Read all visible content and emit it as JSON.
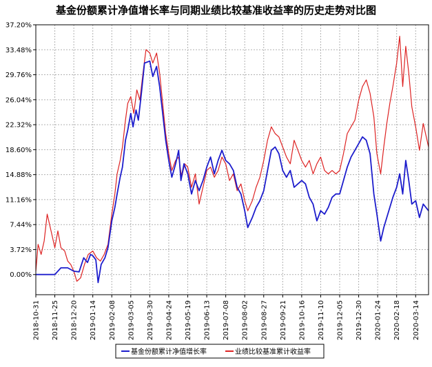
{
  "chart_data": {
    "type": "line",
    "title": "基金份额累计净值增长率与同期业绩比较基准收益率的历史走势对比图",
    "xlabel": "",
    "ylabel": "",
    "y_ticks": [
      "37.20%",
      "33.48%",
      "29.76%",
      "26.04%",
      "22.32%",
      "18.60%",
      "14.88%",
      "11.16%",
      "7.44%",
      "3.72%",
      "0.00%"
    ],
    "y_tick_values": [
      37.2,
      33.48,
      29.76,
      26.04,
      22.32,
      18.6,
      14.88,
      11.16,
      7.44,
      3.72,
      0.0
    ],
    "ylim": [
      -3.0,
      37.2
    ],
    "x_ticks": [
      "2018-10-31",
      "2018-11-25",
      "2018-12-20",
      "2019-01-14",
      "2019-02-08",
      "2019-03-05",
      "2019-03-30",
      "2019-04-24",
      "2019-05-19",
      "2019-06-13",
      "2019-07-08",
      "2019-08-02",
      "2019-08-27",
      "2019-09-21",
      "2019-10-16",
      "2019-11-10",
      "2019-12-05",
      "2019-12-30",
      "2020-01-24",
      "2020-02-18",
      "2020-03-14"
    ],
    "xlim": [
      "2018-10-31",
      "2020-03-31"
    ],
    "grid": true,
    "legend_position": "bottom",
    "series": [
      {
        "name": "基金份额累计净值增长率",
        "color": "#1c1ccc",
        "points": [
          [
            "2018-10-31",
            0.0
          ],
          [
            "2018-11-15",
            0.0
          ],
          [
            "2018-11-25",
            0.0
          ],
          [
            "2018-12-03",
            1.0
          ],
          [
            "2018-12-12",
            1.0
          ],
          [
            "2018-12-20",
            0.5
          ],
          [
            "2018-12-27",
            0.4
          ],
          [
            "2019-01-02",
            2.5
          ],
          [
            "2019-01-07",
            1.8
          ],
          [
            "2019-01-11",
            3.0
          ],
          [
            "2019-01-14",
            2.8
          ],
          [
            "2019-01-18",
            2.2
          ],
          [
            "2019-01-21",
            -1.2
          ],
          [
            "2019-01-25",
            1.5
          ],
          [
            "2019-01-30",
            2.5
          ],
          [
            "2019-02-03",
            4.0
          ],
          [
            "2019-02-08",
            8.0
          ],
          [
            "2019-02-12",
            10.0
          ],
          [
            "2019-02-15",
            12.0
          ],
          [
            "2019-02-19",
            14.5
          ],
          [
            "2019-02-22",
            16.0
          ],
          [
            "2019-02-26",
            20.0
          ],
          [
            "2019-03-01",
            21.5
          ],
          [
            "2019-03-05",
            24.0
          ],
          [
            "2019-03-08",
            22.0
          ],
          [
            "2019-03-12",
            24.5
          ],
          [
            "2019-03-15",
            23.0
          ],
          [
            "2019-03-19",
            27.0
          ],
          [
            "2019-03-23",
            31.5
          ],
          [
            "2019-03-30",
            31.8
          ],
          [
            "2019-04-03",
            29.5
          ],
          [
            "2019-04-08",
            31.0
          ],
          [
            "2019-04-12",
            28.0
          ],
          [
            "2019-04-16",
            24.0
          ],
          [
            "2019-04-20",
            20.0
          ],
          [
            "2019-04-24",
            17.0
          ],
          [
            "2019-04-28",
            14.5
          ],
          [
            "2019-05-03",
            16.5
          ],
          [
            "2019-05-07",
            18.5
          ],
          [
            "2019-05-10",
            14.0
          ],
          [
            "2019-05-14",
            16.5
          ],
          [
            "2019-05-19",
            15.0
          ],
          [
            "2019-05-24",
            12.0
          ],
          [
            "2019-05-29",
            14.0
          ],
          [
            "2019-06-03",
            12.5
          ],
          [
            "2019-06-08",
            14.0
          ],
          [
            "2019-06-13",
            16.0
          ],
          [
            "2019-06-18",
            17.5
          ],
          [
            "2019-06-23",
            15.0
          ],
          [
            "2019-06-28",
            17.0
          ],
          [
            "2019-07-03",
            18.5
          ],
          [
            "2019-07-08",
            17.0
          ],
          [
            "2019-07-13",
            16.5
          ],
          [
            "2019-07-18",
            15.5
          ],
          [
            "2019-07-23",
            13.0
          ],
          [
            "2019-07-28",
            12.0
          ],
          [
            "2019-08-02",
            9.5
          ],
          [
            "2019-08-06",
            7.0
          ],
          [
            "2019-08-12",
            8.5
          ],
          [
            "2019-08-17",
            10.0
          ],
          [
            "2019-08-22",
            11.0
          ],
          [
            "2019-08-27",
            12.5
          ],
          [
            "2019-09-01",
            15.5
          ],
          [
            "2019-09-06",
            18.5
          ],
          [
            "2019-09-11",
            19.0
          ],
          [
            "2019-09-16",
            18.0
          ],
          [
            "2019-09-21",
            15.5
          ],
          [
            "2019-09-26",
            14.5
          ],
          [
            "2019-10-01",
            15.5
          ],
          [
            "2019-10-06",
            13.0
          ],
          [
            "2019-10-11",
            13.5
          ],
          [
            "2019-10-16",
            14.0
          ],
          [
            "2019-10-21",
            13.5
          ],
          [
            "2019-10-26",
            11.5
          ],
          [
            "2019-10-31",
            10.5
          ],
          [
            "2019-11-05",
            8.0
          ],
          [
            "2019-11-10",
            9.5
          ],
          [
            "2019-11-15",
            9.0
          ],
          [
            "2019-11-20",
            10.0
          ],
          [
            "2019-11-25",
            11.5
          ],
          [
            "2019-11-30",
            12.0
          ],
          [
            "2019-12-05",
            12.0
          ],
          [
            "2019-12-10",
            14.0
          ],
          [
            "2019-12-15",
            16.0
          ],
          [
            "2019-12-20",
            17.5
          ],
          [
            "2019-12-25",
            18.5
          ],
          [
            "2019-12-30",
            19.5
          ],
          [
            "2020-01-04",
            20.5
          ],
          [
            "2020-01-09",
            20.0
          ],
          [
            "2020-01-14",
            18.0
          ],
          [
            "2020-01-19",
            12.0
          ],
          [
            "2020-01-23",
            9.0
          ],
          [
            "2020-01-28",
            5.0
          ],
          [
            "2020-02-01",
            7.0
          ],
          [
            "2020-02-05",
            8.5
          ],
          [
            "2020-02-09",
            10.0
          ],
          [
            "2020-02-13",
            11.5
          ],
          [
            "2020-02-18",
            13.0
          ],
          [
            "2020-02-22",
            15.0
          ],
          [
            "2020-02-26",
            12.0
          ],
          [
            "2020-03-01",
            17.0
          ],
          [
            "2020-03-05",
            14.0
          ],
          [
            "2020-03-09",
            10.5
          ],
          [
            "2020-03-14",
            11.0
          ],
          [
            "2020-03-19",
            8.5
          ],
          [
            "2020-03-24",
            10.5
          ],
          [
            "2020-03-31",
            9.5
          ]
        ]
      },
      {
        "name": "业绩比较基准累计收益率",
        "color": "#dd2222",
        "points": [
          [
            "2018-10-31",
            0.5
          ],
          [
            "2018-11-03",
            4.5
          ],
          [
            "2018-11-07",
            3.0
          ],
          [
            "2018-11-11",
            5.0
          ],
          [
            "2018-11-15",
            9.0
          ],
          [
            "2018-11-20",
            6.5
          ],
          [
            "2018-11-25",
            4.0
          ],
          [
            "2018-11-29",
            6.5
          ],
          [
            "2018-12-03",
            4.0
          ],
          [
            "2018-12-08",
            3.5
          ],
          [
            "2018-12-12",
            2.0
          ],
          [
            "2018-12-16",
            1.5
          ],
          [
            "2018-12-20",
            0.5
          ],
          [
            "2018-12-24",
            -1.0
          ],
          [
            "2018-12-29",
            -0.5
          ],
          [
            "2019-01-03",
            1.5
          ],
          [
            "2019-01-08",
            3.0
          ],
          [
            "2019-01-14",
            3.5
          ],
          [
            "2019-01-19",
            2.5
          ],
          [
            "2019-01-24",
            2.0
          ],
          [
            "2019-01-29",
            3.0
          ],
          [
            "2019-02-03",
            4.5
          ],
          [
            "2019-02-08",
            9.0
          ],
          [
            "2019-02-12",
            12.0
          ],
          [
            "2019-02-15",
            15.0
          ],
          [
            "2019-02-19",
            17.0
          ],
          [
            "2019-02-22",
            19.0
          ],
          [
            "2019-02-26",
            23.0
          ],
          [
            "2019-03-01",
            25.5
          ],
          [
            "2019-03-05",
            26.5
          ],
          [
            "2019-03-09",
            24.0
          ],
          [
            "2019-03-13",
            27.5
          ],
          [
            "2019-03-17",
            26.0
          ],
          [
            "2019-03-21",
            30.0
          ],
          [
            "2019-03-25",
            33.5
          ],
          [
            "2019-03-30",
            33.0
          ],
          [
            "2019-04-03",
            31.5
          ],
          [
            "2019-04-08",
            33.0
          ],
          [
            "2019-04-12",
            30.0
          ],
          [
            "2019-04-16",
            25.5
          ],
          [
            "2019-04-20",
            21.0
          ],
          [
            "2019-04-24",
            18.0
          ],
          [
            "2019-04-28",
            15.5
          ],
          [
            "2019-05-03",
            17.0
          ],
          [
            "2019-05-07",
            17.5
          ],
          [
            "2019-05-11",
            14.5
          ],
          [
            "2019-05-15",
            16.5
          ],
          [
            "2019-05-19",
            16.0
          ],
          [
            "2019-05-24",
            13.0
          ],
          [
            "2019-05-29",
            15.0
          ],
          [
            "2019-06-03",
            10.5
          ],
          [
            "2019-06-08",
            13.0
          ],
          [
            "2019-06-13",
            15.5
          ],
          [
            "2019-06-18",
            16.0
          ],
          [
            "2019-06-23",
            14.5
          ],
          [
            "2019-06-28",
            15.5
          ],
          [
            "2019-07-03",
            17.5
          ],
          [
            "2019-07-08",
            16.5
          ],
          [
            "2019-07-13",
            14.0
          ],
          [
            "2019-07-18",
            15.0
          ],
          [
            "2019-07-23",
            12.5
          ],
          [
            "2019-07-28",
            13.5
          ],
          [
            "2019-08-02",
            11.0
          ],
          [
            "2019-08-06",
            9.5
          ],
          [
            "2019-08-12",
            11.0
          ],
          [
            "2019-08-17",
            13.0
          ],
          [
            "2019-08-22",
            14.5
          ],
          [
            "2019-08-27",
            17.0
          ],
          [
            "2019-09-01",
            20.0
          ],
          [
            "2019-09-06",
            22.0
          ],
          [
            "2019-09-11",
            21.0
          ],
          [
            "2019-09-16",
            20.5
          ],
          [
            "2019-09-21",
            19.0
          ],
          [
            "2019-09-26",
            17.5
          ],
          [
            "2019-10-01",
            16.5
          ],
          [
            "2019-10-06",
            20.0
          ],
          [
            "2019-10-11",
            18.5
          ],
          [
            "2019-10-16",
            17.0
          ],
          [
            "2019-10-21",
            16.0
          ],
          [
            "2019-10-26",
            17.0
          ],
          [
            "2019-10-31",
            15.0
          ],
          [
            "2019-11-05",
            16.5
          ],
          [
            "2019-11-10",
            17.5
          ],
          [
            "2019-11-15",
            15.5
          ],
          [
            "2019-11-20",
            15.0
          ],
          [
            "2019-11-25",
            15.5
          ],
          [
            "2019-11-30",
            15.0
          ],
          [
            "2019-12-05",
            15.5
          ],
          [
            "2019-12-10",
            18.0
          ],
          [
            "2019-12-15",
            21.0
          ],
          [
            "2019-12-20",
            22.0
          ],
          [
            "2019-12-25",
            23.0
          ],
          [
            "2019-12-30",
            26.0
          ],
          [
            "2020-01-04",
            28.0
          ],
          [
            "2020-01-09",
            29.0
          ],
          [
            "2020-01-14",
            27.0
          ],
          [
            "2020-01-19",
            23.5
          ],
          [
            "2020-01-23",
            18.0
          ],
          [
            "2020-01-28",
            15.0
          ],
          [
            "2020-02-01",
            19.0
          ],
          [
            "2020-02-05",
            22.5
          ],
          [
            "2020-02-09",
            25.5
          ],
          [
            "2020-02-13",
            28.0
          ],
          [
            "2020-02-18",
            31.5
          ],
          [
            "2020-02-22",
            35.5
          ],
          [
            "2020-02-26",
            28.0
          ],
          [
            "2020-03-01",
            34.0
          ],
          [
            "2020-03-05",
            30.0
          ],
          [
            "2020-03-09",
            25.0
          ],
          [
            "2020-03-14",
            22.0
          ],
          [
            "2020-03-19",
            18.5
          ],
          [
            "2020-03-24",
            22.5
          ],
          [
            "2020-03-31",
            19.0
          ]
        ]
      }
    ]
  }
}
